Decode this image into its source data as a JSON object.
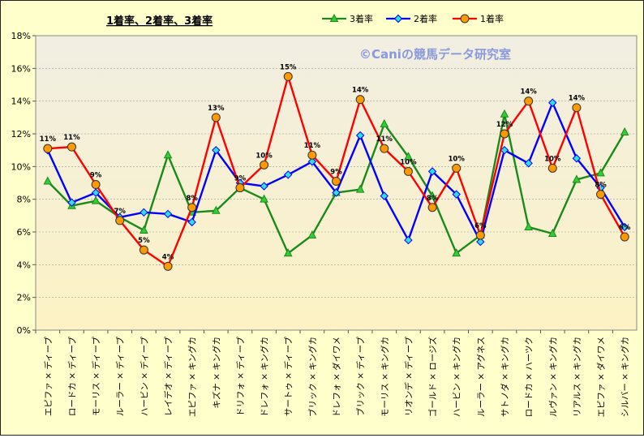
{
  "chart_data": {
    "type": "line",
    "title": "1着率、2着率、3着率",
    "watermark": "©Caniの競馬データ研究室",
    "ylim": [
      0,
      18
    ],
    "yticks": [
      "0%",
      "2%",
      "4%",
      "6%",
      "8%",
      "10%",
      "12%",
      "14%",
      "16%",
      "18%"
    ],
    "grid": true,
    "legend_position": "top",
    "categories": [
      "エピファ × ディープ",
      "ロードカ × ディープ",
      "モーリス × ディープ",
      "ルーラー × ディープ",
      "ハービン × ディープ",
      "レイデオ × ディープ",
      "エピファ × キングカ",
      "キズナ × キングカ",
      "ドリフォ × ディープ",
      "ドレフォ × キングカ",
      "サートゥ × ディープ",
      "ブリック × キングカ",
      "ドレフォ × ダイワメ",
      "ブリック × ディープ",
      "モーリス × キングカ",
      "リオンデ × ディープ",
      "ゴールド × ロージズ",
      "ハービン × キングカ",
      "ルーラー × アグネス",
      "サトノダ × キングカ",
      "ロードカ × ハーツク",
      "ルヴァン × キングカ",
      "リアルス × キングカ",
      "エピファ × ダイワメ",
      "シルバー × キングカ"
    ],
    "series": [
      {
        "name": "3着率",
        "color": "#1a8a1a",
        "marker": "triangle",
        "marker_fill": "#33cc33",
        "values": [
          9.1,
          7.6,
          7.9,
          6.9,
          6.1,
          10.7,
          7.2,
          7.3,
          8.7,
          8.0,
          4.7,
          5.8,
          8.4,
          8.6,
          12.6,
          10.6,
          8.2,
          4.7,
          5.8,
          13.2,
          6.3,
          5.9,
          9.2,
          9.6,
          12.1
        ]
      },
      {
        "name": "2着率",
        "color": "#0000ff",
        "marker": "diamond",
        "marker_fill": "#33dddd",
        "values": [
          11.0,
          7.8,
          8.4,
          6.9,
          7.2,
          7.1,
          6.6,
          11.0,
          9.0,
          8.8,
          9.5,
          10.3,
          8.4,
          11.9,
          8.2,
          5.5,
          9.7,
          8.3,
          5.4,
          11.0,
          10.2,
          13.9,
          10.5,
          8.7,
          6.3
        ]
      },
      {
        "name": "1着率",
        "color": "#ff0000",
        "marker": "circle",
        "marker_fill": "#ff9900",
        "values": [
          11.1,
          11.2,
          8.9,
          6.7,
          4.9,
          3.9,
          7.5,
          13.0,
          8.7,
          10.1,
          15.5,
          10.7,
          9.1,
          14.1,
          11.1,
          9.7,
          7.5,
          9.9,
          5.8,
          12.0,
          14.0,
          9.9,
          13.6,
          8.3,
          5.7
        ]
      }
    ],
    "data_labels": [
      "11%",
      "11%",
      "9%",
      "7%",
      "5%",
      "4%",
      "8%",
      "13%",
      "9%",
      "10%",
      "15%",
      "11%",
      "9%",
      "14%",
      "11%",
      "10%",
      "8%",
      "10%",
      "6%",
      "12%",
      "14%",
      "10%",
      "14%",
      "8%",
      "6%"
    ]
  }
}
